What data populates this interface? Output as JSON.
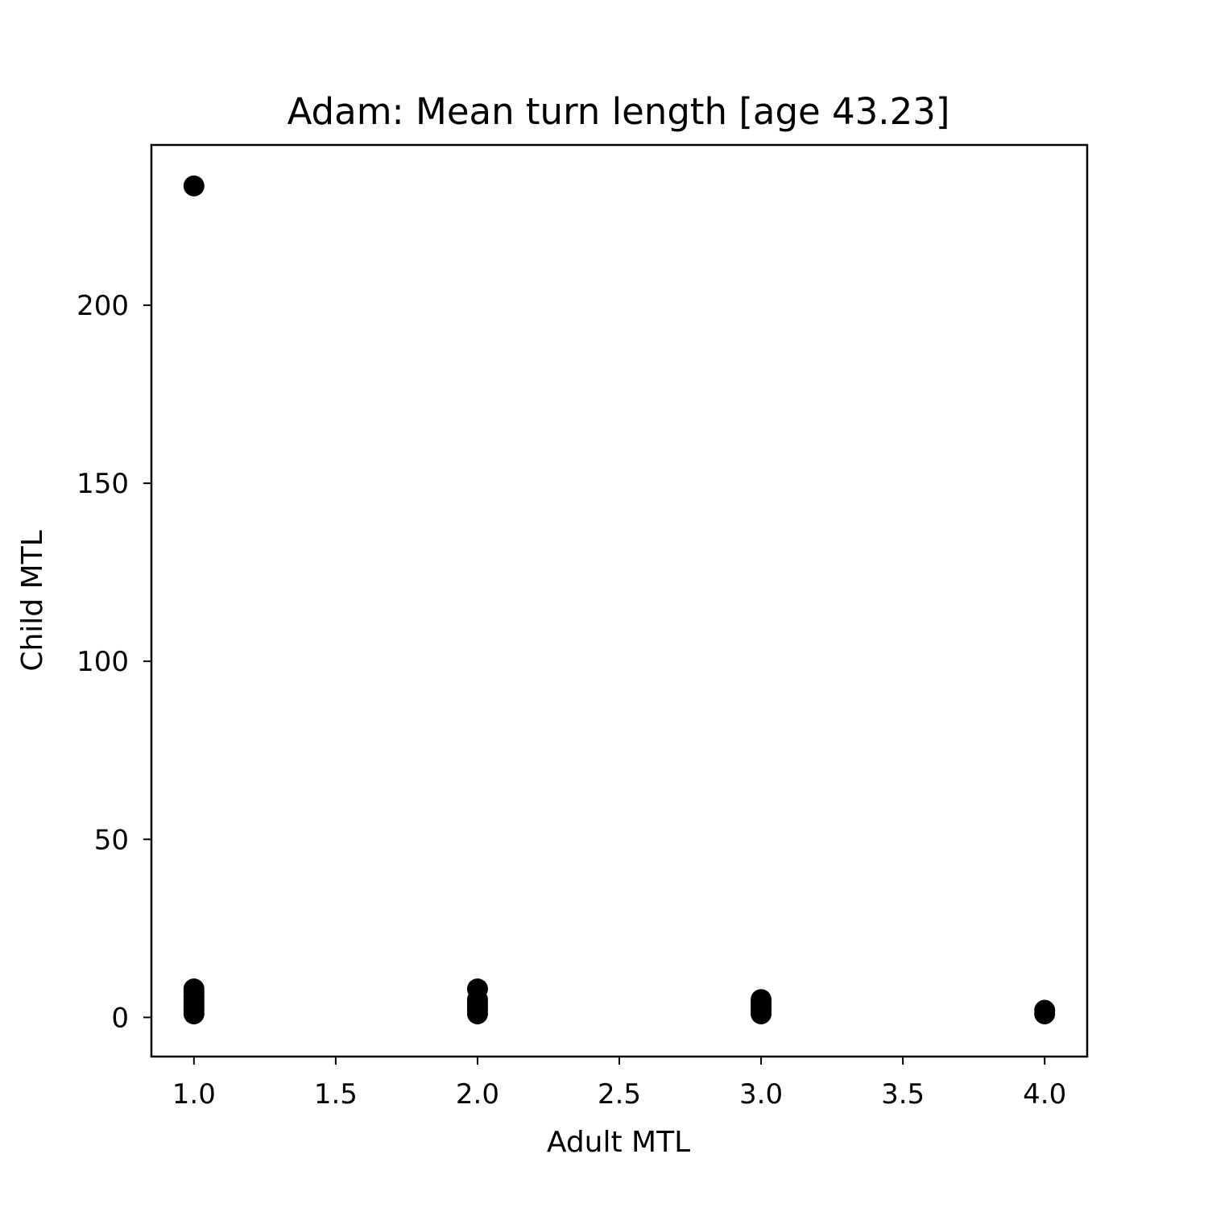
{
  "chart_data": {
    "type": "scatter",
    "title": "Adam: Mean turn length [age 43.23]",
    "xlabel": "Adult MTL",
    "ylabel": "Child MTL",
    "xlim": [
      0.85,
      4.15
    ],
    "ylim": [
      -11,
      245
    ],
    "xticks": [
      1.0,
      1.5,
      2.0,
      2.5,
      3.0,
      3.5,
      4.0
    ],
    "xtick_labels": [
      "1.0",
      "1.5",
      "2.0",
      "2.5",
      "3.0",
      "3.5",
      "4.0"
    ],
    "yticks": [
      0,
      50,
      100,
      150,
      200
    ],
    "ytick_labels": [
      "0",
      "50",
      "100",
      "150",
      "200"
    ],
    "grid": false,
    "marker_color": "#000000",
    "points": [
      {
        "x": 1.0,
        "y": 233.5
      },
      {
        "x": 1.0,
        "y": 8.0
      },
      {
        "x": 1.0,
        "y": 7.0
      },
      {
        "x": 1.0,
        "y": 6.0
      },
      {
        "x": 1.0,
        "y": 5.0
      },
      {
        "x": 1.0,
        "y": 4.0
      },
      {
        "x": 1.0,
        "y": 3.0
      },
      {
        "x": 1.0,
        "y": 2.0
      },
      {
        "x": 1.0,
        "y": 1.0
      },
      {
        "x": 2.0,
        "y": 8.0
      },
      {
        "x": 2.0,
        "y": 5.0
      },
      {
        "x": 2.0,
        "y": 4.0
      },
      {
        "x": 2.0,
        "y": 3.0
      },
      {
        "x": 2.0,
        "y": 2.0
      },
      {
        "x": 2.0,
        "y": 1.0
      },
      {
        "x": 3.0,
        "y": 5.0
      },
      {
        "x": 3.0,
        "y": 4.0
      },
      {
        "x": 3.0,
        "y": 3.0
      },
      {
        "x": 3.0,
        "y": 2.0
      },
      {
        "x": 3.0,
        "y": 1.0
      },
      {
        "x": 4.0,
        "y": 2.0
      },
      {
        "x": 4.0,
        "y": 1.0
      }
    ]
  }
}
